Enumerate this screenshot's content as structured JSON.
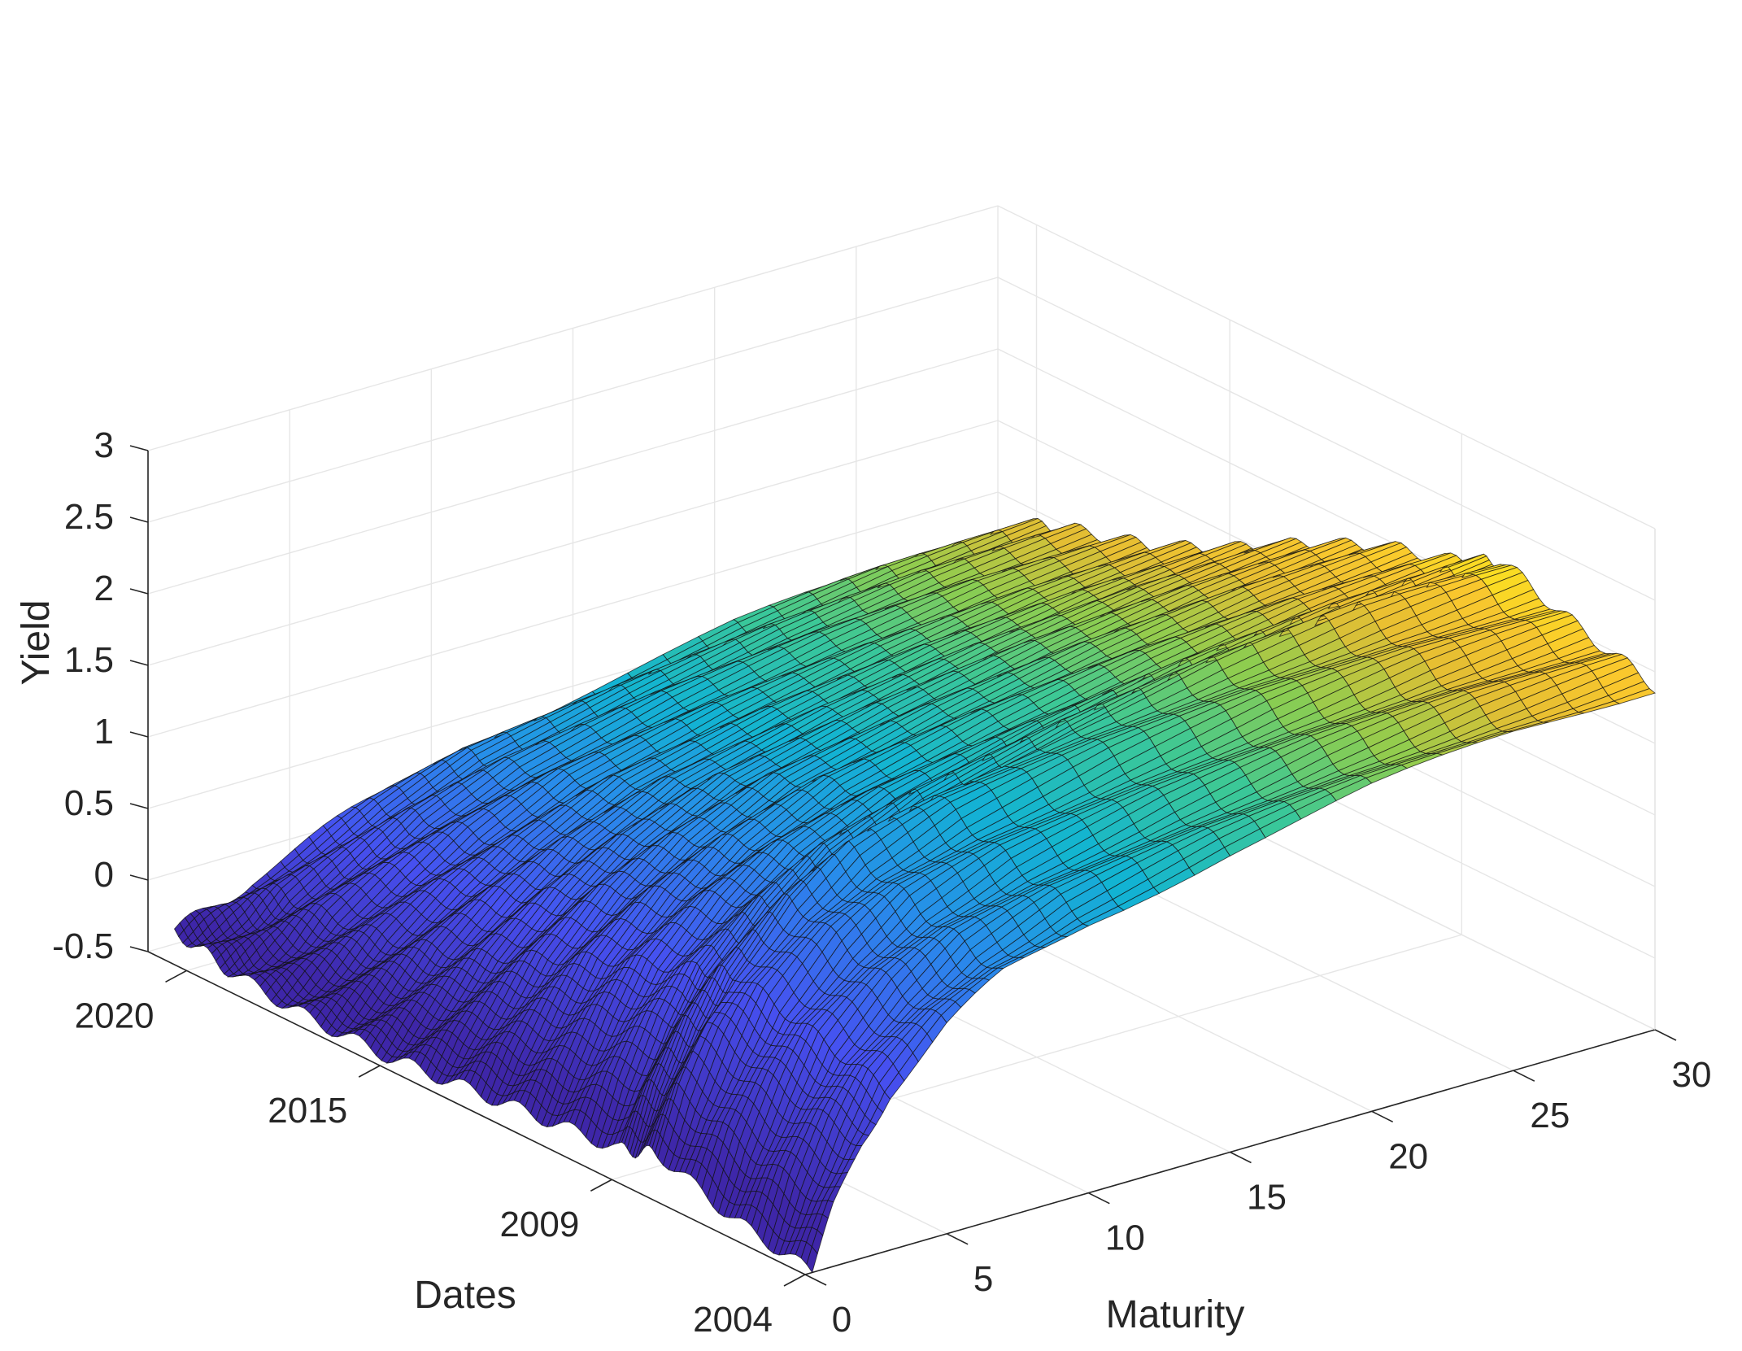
{
  "chart_data": {
    "type": "surface",
    "xlabel": "Maturity",
    "ylabel": "Dates",
    "zlabel": "Yield",
    "x_ticks": [
      "0",
      "5",
      "10",
      "15",
      "20",
      "25",
      "30"
    ],
    "y_ticks": [
      "2004",
      "2009",
      "2015",
      "2020"
    ],
    "z_ticks": [
      "-0.5",
      "0",
      "0.5",
      "1",
      "1.5",
      "2",
      "2.5",
      "3"
    ],
    "xlim": [
      0,
      30
    ],
    "ylim": [
      2004,
      2021
    ],
    "zlim": [
      -0.5,
      3
    ],
    "grid": true,
    "colormap": "parula",
    "colors": {
      "low": "#3e26a8",
      "mid": "#19b2d6",
      "high": "#f9fb15"
    },
    "maturities": [
      0.25,
      1,
      2,
      3,
      5,
      7,
      10,
      15,
      20,
      25,
      30
    ],
    "dates": [
      2004,
      2006,
      2008,
      2009,
      2011,
      2013,
      2015,
      2017,
      2019,
      2020.5
    ],
    "yield_surface": [
      [
        -0.5,
        -0.1,
        0.3,
        0.6,
        0.95,
        1.2,
        1.4,
        1.6,
        1.75,
        1.85,
        1.9
      ],
      [
        -0.4,
        0.0,
        0.4,
        0.75,
        1.1,
        1.35,
        1.55,
        1.75,
        1.9,
        2.0,
        2.05
      ],
      [
        -0.2,
        0.2,
        0.6,
        0.9,
        1.3,
        1.55,
        1.75,
        1.95,
        2.1,
        2.2,
        2.25
      ],
      [
        -0.3,
        0.1,
        0.5,
        0.8,
        1.15,
        1.4,
        1.6,
        1.8,
        1.95,
        2.05,
        2.1
      ],
      [
        -0.35,
        -0.05,
        0.3,
        0.6,
        0.95,
        1.2,
        1.45,
        1.65,
        1.8,
        1.9,
        1.95
      ],
      [
        -0.4,
        -0.15,
        0.1,
        0.35,
        0.7,
        0.95,
        1.2,
        1.4,
        1.55,
        1.65,
        1.7
      ],
      [
        -0.45,
        -0.3,
        -0.1,
        0.1,
        0.4,
        0.65,
        0.9,
        1.1,
        1.25,
        1.35,
        1.4
      ],
      [
        -0.45,
        -0.35,
        -0.2,
        -0.05,
        0.2,
        0.4,
        0.65,
        0.85,
        1.0,
        1.1,
        1.15
      ],
      [
        -0.4,
        -0.35,
        -0.25,
        -0.1,
        0.1,
        0.3,
        0.5,
        0.7,
        0.85,
        0.95,
        1.0
      ],
      [
        -0.3,
        -0.25,
        -0.2,
        -0.1,
        0.05,
        0.2,
        0.4,
        0.55,
        0.7,
        0.8,
        0.85
      ]
    ]
  }
}
